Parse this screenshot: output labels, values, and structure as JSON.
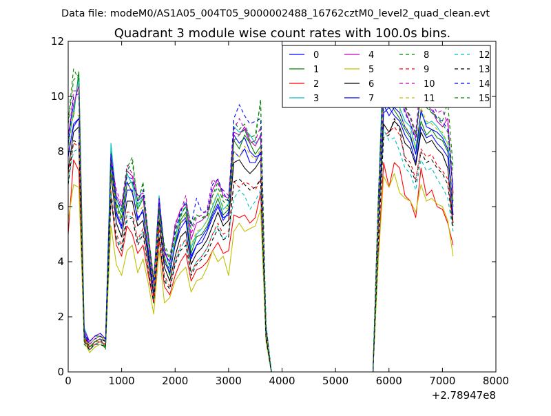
{
  "header": {
    "datafile": "Data file: modeM0/AS1A05_004T05_9000002488_16762cztM0_level2_quad_clean.evt"
  },
  "chart_data": {
    "type": "line",
    "title": "Quadrant 3 module wise count rates with 100.0s bins.",
    "xlabel": "",
    "ylabel": "",
    "x_offset_label": "+2.78947e8",
    "xlim": [
      0,
      8000
    ],
    "ylim": [
      0,
      12
    ],
    "x_ticks": [
      0,
      1000,
      2000,
      3000,
      4000,
      5000,
      6000,
      7000,
      8000
    ],
    "y_ticks": [
      0,
      2,
      4,
      6,
      8,
      10,
      12
    ],
    "grid": false,
    "legend_placement": "top-right",
    "x": [
      0,
      100,
      200,
      300,
      400,
      500,
      600,
      700,
      800,
      900,
      1000,
      1100,
      1200,
      1300,
      1400,
      1500,
      1600,
      1700,
      1800,
      1900,
      2000,
      2100,
      2200,
      2300,
      2400,
      2500,
      2600,
      2700,
      2800,
      2900,
      3000,
      3100,
      3200,
      3300,
      3400,
      3500,
      3600,
      3700,
      3800,
      3900,
      5700,
      5800,
      5900,
      6000,
      6100,
      6200,
      6300,
      6400,
      6500,
      6600,
      6700,
      6800,
      6900,
      7000,
      7100,
      7200
    ],
    "series": [
      {
        "name": "0",
        "color": "#0000ff",
        "dash": false,
        "values": [
          7.9,
          8.9,
          9.2,
          1.4,
          1.0,
          1.2,
          1.3,
          1.1,
          7.8,
          5.8,
          5.3,
          6.9,
          6.5,
          5.6,
          5.8,
          4.4,
          3.0,
          6.1,
          4.1,
          3.7,
          4.6,
          5.4,
          5.6,
          4.2,
          4.6,
          4.9,
          5.2,
          5.7,
          6.1,
          5.6,
          5.7,
          8.6,
          8.3,
          8.5,
          8.0,
          7.8,
          7.9,
          1.4,
          0.0,
          0.0,
          0.0,
          5.4,
          9.4,
          9.6,
          9.3,
          9.1,
          8.6,
          8.3,
          7.6,
          8.9,
          8.5,
          8.6,
          8.3,
          8.1,
          7.8,
          6.0
        ]
      },
      {
        "name": "1",
        "color": "#008000",
        "dash": false,
        "values": [
          8.7,
          9.3,
          10.9,
          1.5,
          1.1,
          1.3,
          1.3,
          1.2,
          8.0,
          6.1,
          5.6,
          6.8,
          6.9,
          5.9,
          6.3,
          4.7,
          3.1,
          5.9,
          4.2,
          3.5,
          4.7,
          5.5,
          5.8,
          4.3,
          4.9,
          5.0,
          5.3,
          5.8,
          6.3,
          5.7,
          5.9,
          8.4,
          8.1,
          8.6,
          8.3,
          7.9,
          8.2,
          1.6,
          0.0,
          0.0,
          0.0,
          5.8,
          10.2,
          9.8,
          9.5,
          9.2,
          8.8,
          8.5,
          7.9,
          9.1,
          8.6,
          8.8,
          8.5,
          8.4,
          8.0,
          6.2
        ]
      },
      {
        "name": "2",
        "color": "#ff0000",
        "dash": false,
        "values": [
          5.0,
          7.7,
          7.3,
          1.2,
          0.8,
          1.0,
          1.1,
          1.0,
          6.4,
          4.6,
          4.2,
          5.3,
          5.0,
          4.3,
          4.6,
          3.5,
          2.5,
          4.8,
          3.1,
          2.8,
          3.5,
          4.0,
          4.3,
          3.3,
          3.7,
          3.8,
          4.0,
          4.4,
          4.7,
          4.3,
          4.4,
          5.7,
          5.6,
          5.7,
          5.4,
          5.6,
          6.5,
          1.2,
          0.0,
          0.0,
          0.0,
          4.2,
          7.6,
          6.7,
          7.6,
          7.4,
          6.4,
          6.2,
          5.6,
          7.4,
          6.4,
          6.6,
          6.0,
          5.9,
          5.4,
          4.6
        ]
      },
      {
        "name": "3",
        "color": "#00bfbf",
        "dash": false,
        "values": [
          8.2,
          9.5,
          10.7,
          1.6,
          1.1,
          1.3,
          1.4,
          1.2,
          8.3,
          6.3,
          5.8,
          7.2,
          6.8,
          6.0,
          6.4,
          4.8,
          3.3,
          6.4,
          4.4,
          3.8,
          4.9,
          5.7,
          6.0,
          4.5,
          5.0,
          5.2,
          5.5,
          6.0,
          6.5,
          5.9,
          6.1,
          8.9,
          8.7,
          8.8,
          8.6,
          8.3,
          8.5,
          1.7,
          0.0,
          0.0,
          0.0,
          6.2,
          11.7,
          10.4,
          10.0,
          9.6,
          9.1,
          8.9,
          8.1,
          9.4,
          9.0,
          9.1,
          8.9,
          8.6,
          8.3,
          6.8
        ]
      },
      {
        "name": "4",
        "color": "#bf00bf",
        "dash": false,
        "values": [
          8.6,
          9.7,
          10.4,
          1.5,
          1.1,
          1.3,
          1.4,
          1.2,
          7.9,
          6.4,
          6.0,
          7.3,
          7.1,
          6.2,
          6.4,
          4.9,
          3.2,
          6.2,
          4.3,
          4.0,
          5.3,
          5.9,
          6.1,
          4.8,
          5.4,
          5.5,
          5.7,
          6.6,
          7.0,
          6.4,
          6.3,
          8.7,
          8.6,
          8.9,
          8.4,
          8.2,
          8.6,
          1.6,
          0.0,
          0.0,
          0.0,
          6.0,
          10.5,
          10.1,
          10.3,
          9.9,
          9.5,
          9.0,
          8.5,
          10.2,
          9.7,
          9.5,
          9.1,
          8.9,
          9.2,
          6.5
        ]
      },
      {
        "name": "5",
        "color": "#bfbf00",
        "dash": false,
        "values": [
          5.5,
          6.8,
          6.7,
          1.1,
          0.7,
          0.9,
          1.0,
          0.9,
          5.3,
          3.9,
          3.5,
          4.4,
          4.6,
          3.6,
          4.1,
          3.2,
          2.1,
          4.4,
          2.5,
          2.7,
          3.3,
          3.6,
          3.8,
          2.9,
          3.3,
          3.4,
          3.8,
          4.4,
          4.0,
          4.2,
          3.5,
          5.1,
          5.4,
          5.1,
          5.2,
          5.3,
          5.9,
          1.1,
          0.0,
          0.0,
          0.0,
          4.0,
          7.1,
          6.7,
          7.2,
          6.5,
          6.3,
          6.2,
          5.8,
          6.8,
          6.2,
          6.3,
          6.1,
          6.0,
          5.5,
          4.2
        ]
      },
      {
        "name": "6",
        "color": "#000000",
        "dash": false,
        "values": [
          7.3,
          8.7,
          8.9,
          1.3,
          0.9,
          1.1,
          1.2,
          1.1,
          7.2,
          5.4,
          4.9,
          6.2,
          6.2,
          5.3,
          5.5,
          4.1,
          2.8,
          5.5,
          3.8,
          3.3,
          4.2,
          4.9,
          5.1,
          3.9,
          4.3,
          4.5,
          4.8,
          5.3,
          5.8,
          5.3,
          5.5,
          7.6,
          7.7,
          7.4,
          7.2,
          7.4,
          7.7,
          1.4,
          0.0,
          0.0,
          0.0,
          5.3,
          9.0,
          8.7,
          9.1,
          8.9,
          8.3,
          8.1,
          7.5,
          8.7,
          8.3,
          8.4,
          8.1,
          7.9,
          7.4,
          5.4
        ]
      },
      {
        "name": "7",
        "color": "#0000ff",
        "dash": false,
        "values": [
          7.8,
          9.0,
          9.2,
          1.4,
          1.0,
          1.2,
          1.3,
          1.1,
          7.6,
          5.7,
          5.2,
          6.6,
          6.6,
          5.5,
          5.9,
          4.3,
          2.9,
          5.8,
          4.0,
          3.6,
          4.6,
          5.2,
          5.5,
          4.1,
          4.6,
          4.7,
          5.1,
          5.6,
          6.0,
          5.5,
          5.8,
          8.0,
          7.8,
          8.1,
          7.6,
          7.6,
          8.0,
          1.5,
          0.0,
          0.0,
          0.0,
          5.6,
          9.7,
          9.3,
          9.6,
          9.4,
          8.9,
          8.6,
          7.9,
          9.5,
          8.9,
          8.8,
          8.7,
          8.5,
          8.1,
          5.7
        ]
      },
      {
        "name": "8",
        "color": "#008000",
        "dash": true,
        "values": [
          9.1,
          11.0,
          10.6,
          1.0,
          0.8,
          1.1,
          1.2,
          0.9,
          7.8,
          6.0,
          5.5,
          7.3,
          7.6,
          6.2,
          6.8,
          5.0,
          3.4,
          6.0,
          4.6,
          4.2,
          5.2,
          5.7,
          6.0,
          5.2,
          5.7,
          5.6,
          5.6,
          6.4,
          6.9,
          6.3,
          6.2,
          9.1,
          8.8,
          9.0,
          8.5,
          8.6,
          9.8,
          1.7,
          0.0,
          0.0,
          0.0,
          6.3,
          11.1,
          11.2,
          10.8,
          10.3,
          9.7,
          9.2,
          8.6,
          10.3,
          9.7,
          9.4,
          9.3,
          9.1,
          9.8,
          7.4
        ]
      },
      {
        "name": "9",
        "color": "#ff0000",
        "dash": true,
        "values": [
          7.2,
          8.3,
          8.2,
          1.2,
          0.9,
          1.1,
          1.1,
          1.0,
          6.6,
          5.0,
          4.6,
          5.8,
          5.8,
          4.8,
          5.2,
          3.8,
          2.7,
          5.2,
          3.5,
          3.1,
          4.0,
          4.6,
          4.8,
          3.6,
          4.0,
          4.2,
          4.5,
          5.0,
          5.4,
          5.0,
          5.1,
          6.9,
          6.7,
          6.9,
          6.8,
          6.6,
          7.0,
          1.3,
          0.0,
          0.0,
          0.0,
          4.9,
          8.6,
          8.7,
          8.9,
          8.6,
          7.8,
          7.6,
          7.0,
          8.1,
          7.8,
          7.9,
          7.5,
          7.3,
          7.0,
          5.3
        ]
      },
      {
        "name": "10",
        "color": "#bf00bf",
        "dash": true,
        "values": [
          8.4,
          10.2,
          10.2,
          1.3,
          1.0,
          1.2,
          1.2,
          1.1,
          7.7,
          6.6,
          6.1,
          7.5,
          7.2,
          6.4,
          6.5,
          5.0,
          3.3,
          6.3,
          4.4,
          4.0,
          5.4,
          5.8,
          6.4,
          5.0,
          5.6,
          5.7,
          5.9,
          7.0,
          6.8,
          6.6,
          6.4,
          8.8,
          9.2,
          8.8,
          8.3,
          8.4,
          8.9,
          1.6,
          0.0,
          0.0,
          0.0,
          6.1,
          11.0,
          10.8,
          10.5,
          10.0,
          9.6,
          9.3,
          8.7,
          10.7,
          10.0,
          9.8,
          9.4,
          9.5,
          9.0,
          6.4
        ]
      },
      {
        "name": "11",
        "color": "#bfbf00",
        "dash": true,
        "values": [
          8.0,
          9.4,
          9.3,
          1.2,
          1.0,
          1.2,
          1.3,
          1.1,
          7.3,
          5.9,
          5.4,
          6.8,
          6.6,
          5.8,
          6.0,
          4.6,
          3.0,
          5.7,
          4.1,
          3.7,
          4.8,
          5.4,
          5.7,
          4.6,
          5.1,
          5.2,
          5.5,
          6.1,
          6.5,
          6.0,
          5.9,
          8.0,
          7.8,
          8.2,
          7.9,
          7.7,
          8.1,
          1.5,
          0.0,
          0.0,
          0.0,
          5.7,
          10.0,
          9.8,
          9.9,
          9.5,
          8.9,
          8.7,
          8.2,
          9.6,
          9.1,
          9.0,
          8.8,
          8.7,
          8.3,
          6.0
        ]
      },
      {
        "name": "12",
        "color": "#00bfbf",
        "dash": true,
        "values": [
          6.9,
          8.0,
          8.1,
          1.1,
          0.8,
          1.0,
          1.1,
          0.9,
          6.5,
          4.9,
          4.5,
          5.7,
          5.6,
          4.7,
          5.1,
          3.8,
          2.6,
          5.0,
          3.4,
          3.0,
          4.0,
          4.5,
          4.8,
          3.6,
          4.0,
          4.2,
          4.5,
          5.0,
          5.3,
          4.8,
          5.0,
          6.3,
          6.6,
          6.4,
          5.9,
          6.2,
          6.6,
          1.2,
          0.0,
          0.0,
          0.0,
          4.7,
          8.8,
          8.4,
          8.5,
          8.0,
          7.4,
          7.2,
          6.6,
          7.7,
          7.3,
          7.4,
          7.0,
          6.7,
          6.3,
          5.1
        ]
      },
      {
        "name": "13",
        "color": "#000000",
        "dash": true,
        "values": [
          6.8,
          8.4,
          8.3,
          1.1,
          0.8,
          1.0,
          1.0,
          0.9,
          6.3,
          4.8,
          4.4,
          5.5,
          5.6,
          4.6,
          5.0,
          3.7,
          2.5,
          4.9,
          3.3,
          3.0,
          3.9,
          4.4,
          4.6,
          3.5,
          3.9,
          4.1,
          4.3,
          4.8,
          5.2,
          4.8,
          4.9,
          6.9,
          7.0,
          6.8,
          6.6,
          6.7,
          7.0,
          1.2,
          0.0,
          0.0,
          0.0,
          4.6,
          8.5,
          8.6,
          9.2,
          8.8,
          7.7,
          7.4,
          6.9,
          8.0,
          7.6,
          7.7,
          7.4,
          7.2,
          6.8,
          5.2
        ]
      },
      {
        "name": "14",
        "color": "#0000ff",
        "dash": true,
        "values": [
          8.3,
          10.0,
          10.1,
          1.4,
          1.1,
          1.3,
          1.4,
          1.2,
          7.9,
          6.3,
          5.9,
          7.1,
          7.0,
          6.2,
          6.6,
          4.9,
          3.3,
          6.3,
          4.4,
          3.9,
          5.1,
          5.8,
          6.2,
          5.3,
          6.3,
          5.8,
          5.8,
          6.8,
          7.0,
          6.5,
          6.2,
          9.2,
          9.7,
          9.3,
          9.0,
          9.1,
          9.2,
          1.7,
          0.0,
          0.0,
          0.0,
          6.2,
          11.1,
          10.7,
          10.4,
          10.0,
          9.4,
          9.0,
          8.4,
          10.3,
          9.8,
          9.6,
          9.2,
          9.1,
          8.8,
          6.6
        ]
      },
      {
        "name": "15",
        "color": "#008000",
        "dash": true,
        "values": [
          9.0,
          10.6,
          10.8,
          1.1,
          0.9,
          1.1,
          1.2,
          0.8,
          7.6,
          6.1,
          5.8,
          7.4,
          7.8,
          6.1,
          6.9,
          4.9,
          3.4,
          5.9,
          4.5,
          4.1,
          5.0,
          5.6,
          6.1,
          5.4,
          5.7,
          5.6,
          5.7,
          6.4,
          6.7,
          6.2,
          6.0,
          8.4,
          8.6,
          8.8,
          8.3,
          8.4,
          9.9,
          1.6,
          0.0,
          0.0,
          0.0,
          6.1,
          10.8,
          11.0,
          10.6,
          10.1,
          9.6,
          9.2,
          8.6,
          10.1,
          9.6,
          9.4,
          9.2,
          9.0,
          8.7,
          7.2
        ]
      }
    ]
  }
}
